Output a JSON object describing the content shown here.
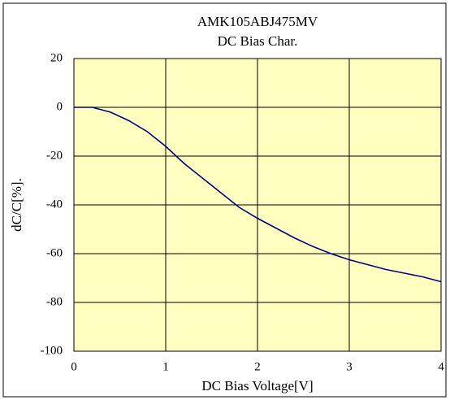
{
  "chart_data": {
    "type": "line",
    "title": "AMK105ABJ475MV",
    "subtitle": "DC Bias Char.",
    "x_label": "DC Bias Voltage[V]",
    "y_label": "dC/C[%].",
    "x": [
      0,
      0.2,
      0.4,
      0.6,
      0.8,
      1.0,
      1.2,
      1.4,
      1.6,
      1.8,
      2.0,
      2.2,
      2.4,
      2.6,
      2.8,
      3.0,
      3.2,
      3.4,
      3.6,
      3.8,
      4.0
    ],
    "series": [
      {
        "name": "AMK105ABJ475MV",
        "color": "#000080",
        "values": [
          0,
          0,
          -2,
          -5.5,
          -10,
          -16,
          -23,
          -29,
          -35,
          -41,
          -45.5,
          -49.5,
          -53.5,
          -57,
          -60,
          -62.5,
          -64.5,
          -66.5,
          -68,
          -69.5,
          -71.5
        ]
      }
    ],
    "xlim": [
      0,
      4
    ],
    "xticks": [
      0,
      1,
      2,
      3,
      4
    ],
    "ylim": [
      -100,
      20
    ],
    "yticks": [
      -100,
      -80,
      -60,
      -40,
      -20,
      0,
      20
    ],
    "grid": true,
    "plot_background": "#ffffc0"
  }
}
